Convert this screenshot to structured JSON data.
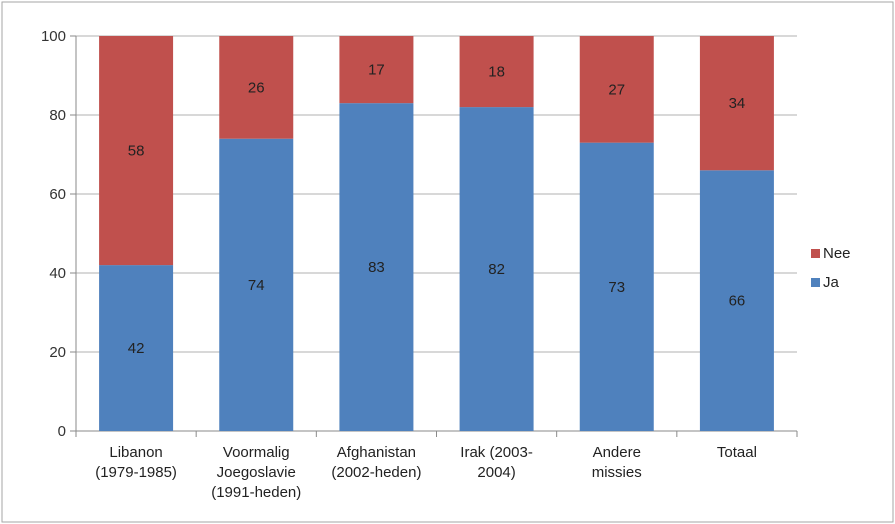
{
  "chart_data": {
    "type": "bar",
    "stacked": true,
    "categories": [
      [
        "Libanon",
        "(1979-1985)"
      ],
      [
        "Voormalig",
        "Joegoslavie",
        "(1991-heden)"
      ],
      [
        "Afghanistan",
        "(2002-heden)"
      ],
      [
        "Irak (2003-",
        "2004)"
      ],
      [
        "Andere",
        "missies"
      ],
      [
        "Totaal"
      ]
    ],
    "series": [
      {
        "name": "Ja",
        "color": "#4f81bd",
        "values": [
          42,
          74,
          83,
          82,
          73,
          66
        ]
      },
      {
        "name": "Nee",
        "color": "#c0504d",
        "values": [
          58,
          26,
          17,
          18,
          27,
          34
        ]
      }
    ],
    "yticks": [
      0,
      20,
      40,
      60,
      80,
      100
    ],
    "ylim": [
      0,
      100
    ],
    "grid": true,
    "legend": {
      "position": "right",
      "order": [
        "Nee",
        "Ja"
      ]
    }
  }
}
